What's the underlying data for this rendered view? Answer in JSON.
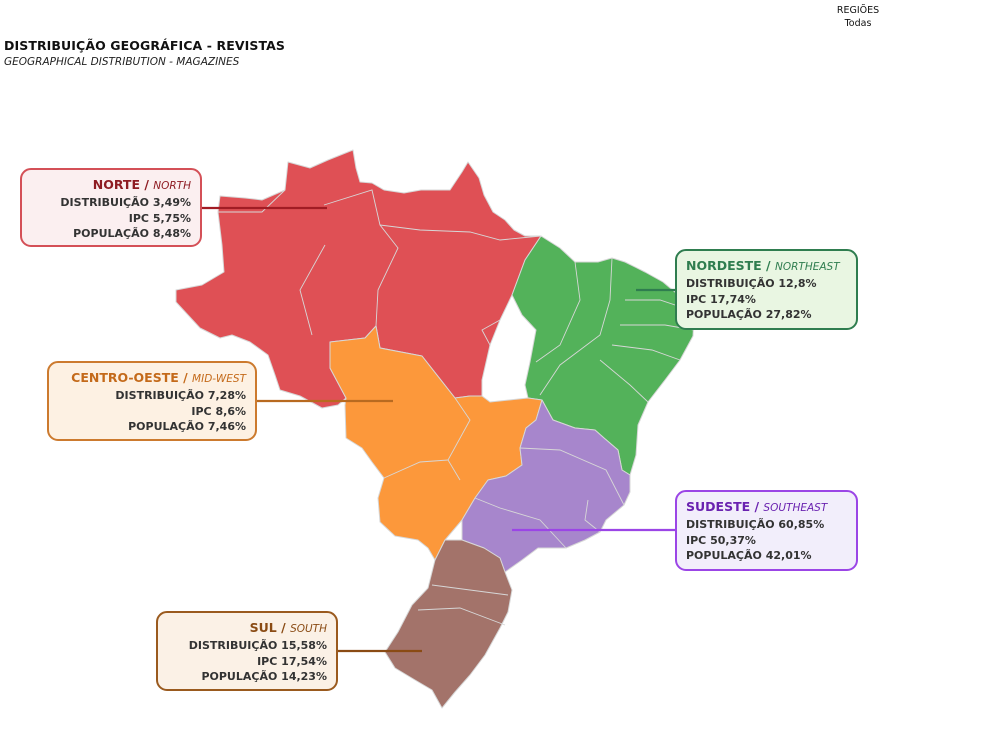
{
  "header": {
    "title": "DISTRIBUIÇÃO GEOGRÁFICA - REVISTAS",
    "subtitle": "GEOGRAPHICAL DISTRIBUTION - MAGAZINES"
  },
  "filter": {
    "label": "REGIÕES",
    "value": "Todas"
  },
  "regions": {
    "norte": {
      "name": "NORTE",
      "name_en": "NORTH",
      "color": "#df5055",
      "distribuicao_label": "DISTRIBUIÇÃO",
      "distribuicao": "3,49%",
      "ipc_label": "IPC",
      "ipc": "5,75%",
      "populacao_label": "POPULAÇÃO",
      "populacao": "8,48%"
    },
    "centro_oeste": {
      "name": "CENTRO-OESTE",
      "name_en": "MID-WEST",
      "color": "#fc983b",
      "distribuicao_label": "DISTRIBUIÇÃO",
      "distribuicao": "7,28%",
      "ipc_label": "IPC",
      "ipc": "8,6%",
      "populacao_label": "POPULAÇÃO",
      "populacao": "7,46%"
    },
    "nordeste": {
      "name": "NORDESTE",
      "name_en": "NORTHEAST",
      "color": "#53b25a",
      "distribuicao_label": "DISTRIBUIÇÃO",
      "distribuicao": "12,8%",
      "ipc_label": "IPC",
      "ipc": "17,74%",
      "populacao_label": "POPULAÇÃO",
      "populacao": "27,82%"
    },
    "sudeste": {
      "name": "SUDESTE",
      "name_en": "SOUTHEAST",
      "color": "#a786cc",
      "distribuicao_label": "DISTRIBUIÇÃO",
      "distribuicao": "60,85%",
      "ipc_label": "IPC",
      "ipc": "50,37%",
      "populacao_label": "POPULAÇÃO",
      "populacao": "42,01%"
    },
    "sul": {
      "name": "SUL",
      "name_en": "SOUTH",
      "color": "#a3736a",
      "distribuicao_label": "DISTRIBUIÇÃO",
      "distribuicao": "15,58%",
      "ipc_label": "IPC",
      "ipc": "17,54%",
      "populacao_label": "POPULAÇÃO",
      "populacao": "14,23%"
    }
  }
}
